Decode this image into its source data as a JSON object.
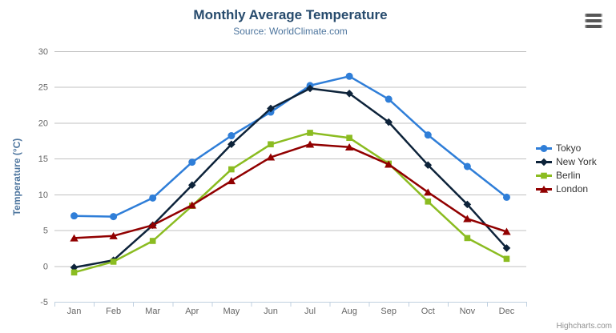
{
  "chart": {
    "title": "Monthly Average Temperature",
    "subtitle": "Source: WorldClimate.com",
    "credits": "Highcharts.com",
    "menu_icon": "hamburger-icon"
  },
  "chart_data": {
    "type": "line",
    "title": "Monthly Average Temperature",
    "subtitle": "Source: WorldClimate.com",
    "xlabel": "",
    "ylabel": "Temperature (°C)",
    "ylim": [
      -5,
      30
    ],
    "yticks": [
      -5,
      0,
      5,
      10,
      15,
      20,
      25,
      30
    ],
    "grid": true,
    "legend_position": "right",
    "categories": [
      "Jan",
      "Feb",
      "Mar",
      "Apr",
      "May",
      "Jun",
      "Jul",
      "Aug",
      "Sep",
      "Oct",
      "Nov",
      "Dec"
    ],
    "series": [
      {
        "name": "Tokyo",
        "color": "#2f7ed8",
        "marker": "circle",
        "values": [
          7.0,
          6.9,
          9.5,
          14.5,
          18.2,
          21.5,
          25.2,
          26.5,
          23.3,
          18.3,
          13.9,
          9.6
        ]
      },
      {
        "name": "New York",
        "color": "#0d233a",
        "marker": "diamond",
        "values": [
          -0.2,
          0.8,
          5.7,
          11.3,
          17.0,
          22.0,
          24.8,
          24.1,
          20.1,
          14.1,
          8.6,
          2.5
        ]
      },
      {
        "name": "Berlin",
        "color": "#8bbc21",
        "marker": "square",
        "values": [
          -0.9,
          0.6,
          3.5,
          8.4,
          13.5,
          17.0,
          18.6,
          17.9,
          14.3,
          9.0,
          3.9,
          1.0
        ]
      },
      {
        "name": "London",
        "color": "#910000",
        "marker": "triangle",
        "values": [
          3.9,
          4.2,
          5.7,
          8.5,
          11.9,
          15.2,
          17.0,
          16.6,
          14.2,
          10.3,
          6.6,
          4.8
        ]
      }
    ]
  },
  "colors": {
    "grid": "#C0C0C0",
    "axis_line": "#C0D0E0",
    "tick_label": "#666666",
    "title": "#274b6d",
    "subtitle": "#4d759e",
    "axis_title": "#4d759e",
    "legend_text": "#333333",
    "credits": "#909090"
  }
}
